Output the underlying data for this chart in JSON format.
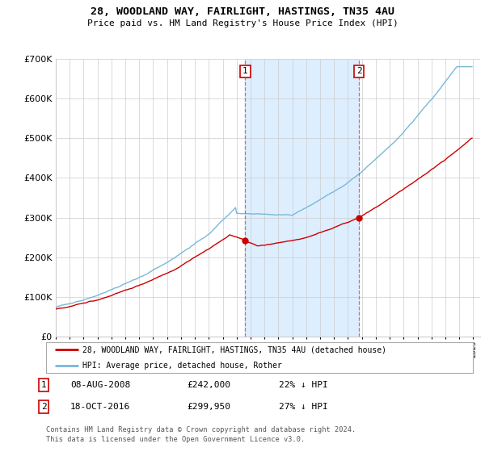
{
  "title": "28, WOODLAND WAY, FAIRLIGHT, HASTINGS, TN35 4AU",
  "subtitle": "Price paid vs. HM Land Registry's House Price Index (HPI)",
  "ylim": [
    0,
    700000
  ],
  "yticks": [
    0,
    100000,
    200000,
    300000,
    400000,
    500000,
    600000,
    700000
  ],
  "xlim_start": 1995,
  "xlim_end": 2025.5,
  "sale1_date": 2008.62,
  "sale1_price": 242000,
  "sale2_date": 2016.8,
  "sale2_price": 299950,
  "hpi_color": "#7ab8d9",
  "sale_color": "#cc0000",
  "span_color": "#ddeeff",
  "legend_sale": "28, WOODLAND WAY, FAIRLIGHT, HASTINGS, TN35 4AU (detached house)",
  "legend_hpi": "HPI: Average price, detached house, Rother",
  "footnote": "Contains HM Land Registry data © Crown copyright and database right 2024.\nThis data is licensed under the Open Government Licence v3.0.",
  "background_color": "#ffffff",
  "plot_bg_color": "#ffffff"
}
